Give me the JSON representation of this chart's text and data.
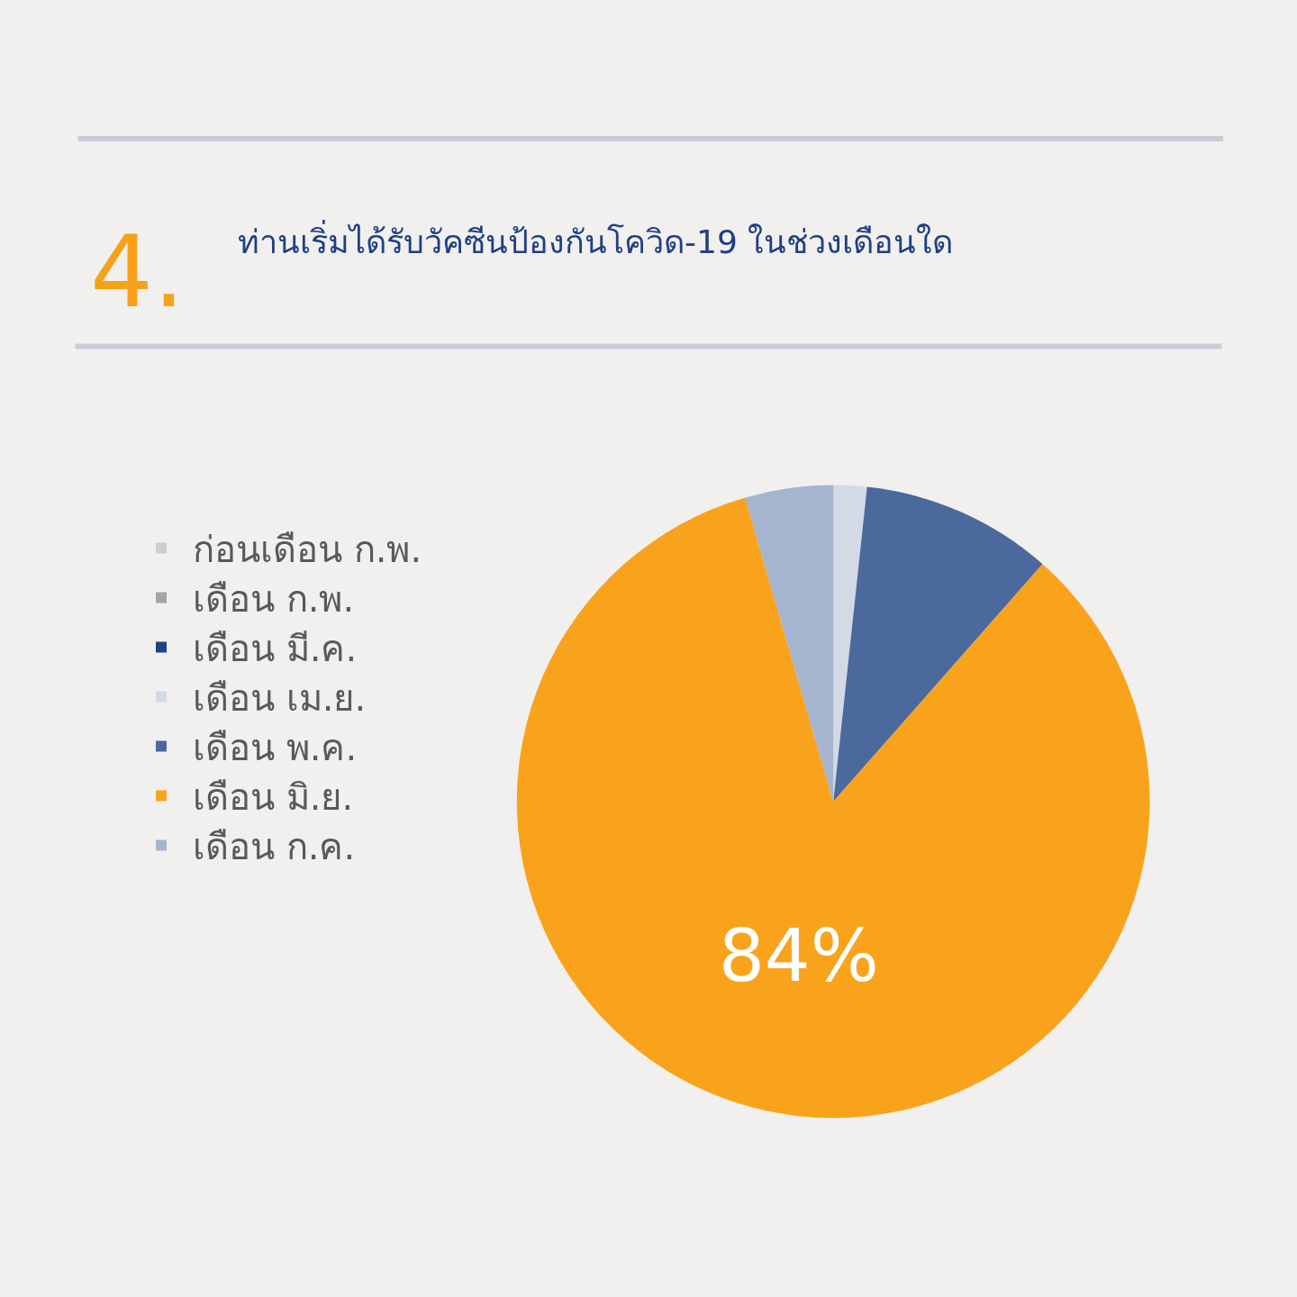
{
  "chart_data": {
    "type": "pie",
    "title": "ท่านเริ่มได้รับวัคซีนป้องกันโควิด-19 ในช่วงเดือนใด",
    "annotations": [
      "4."
    ],
    "categories": [
      "ก่อนเดือน ก.พ.",
      "เดือน ก.พ.",
      "เดือน มี.ค.",
      "เดือน เม.ย.",
      "เดือน พ.ค.",
      "เดือน มิ.ย.",
      "เดือน ก.ค."
    ],
    "values": [
      0,
      0,
      0,
      1.7,
      9.8,
      84,
      4.5
    ],
    "colors": [
      "#d0cecd",
      "#a5a5a5",
      "#1f4287",
      "#d3dae6",
      "#4c699e",
      "#f9a31c",
      "#a6b5cf"
    ],
    "value_labels": [
      null,
      null,
      null,
      null,
      null,
      "84%",
      null
    ],
    "legend": "left"
  }
}
